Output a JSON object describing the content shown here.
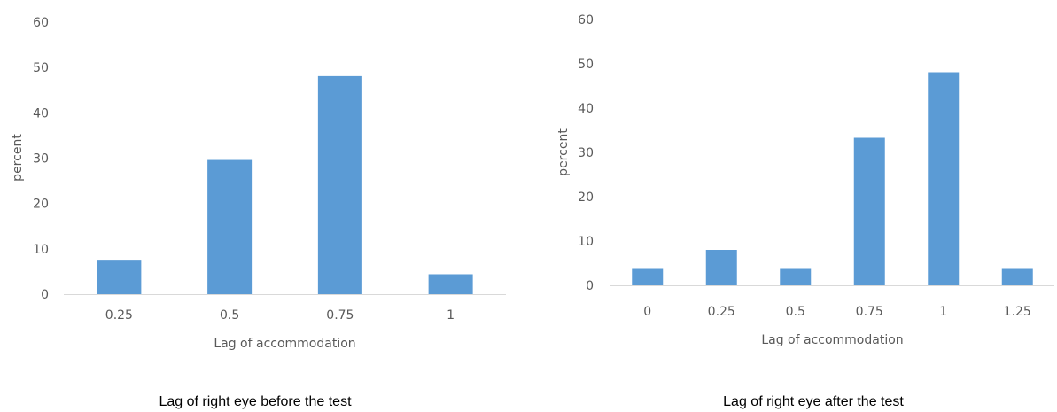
{
  "chart_data": [
    {
      "type": "bar",
      "categories": [
        "0.25",
        "0.5",
        "0.75",
        "1"
      ],
      "values": [
        7.4,
        29.6,
        48.1,
        4.4
      ],
      "xlabel": "Lag of accommodation",
      "ylabel": "percent",
      "yticks": [
        "0",
        "10",
        "20",
        "30",
        "40",
        "50",
        "60"
      ],
      "ylim": [
        0,
        60
      ],
      "grid": false,
      "bar_color": "#5b9bd5",
      "caption": "Lag of right eye before the test"
    },
    {
      "type": "bar",
      "categories": [
        "0",
        "0.25",
        "0.5",
        "0.75",
        "1",
        "1.25"
      ],
      "values": [
        3.7,
        8.0,
        3.7,
        33.3,
        48.1,
        3.7
      ],
      "xlabel": "Lag of accommodation",
      "ylabel": "percent",
      "yticks": [
        "0",
        "10",
        "20",
        "30",
        "40",
        "50",
        "60"
      ],
      "ylim": [
        0,
        60
      ],
      "grid": false,
      "bar_color": "#5b9bd5",
      "caption": "Lag of right eye after the test"
    }
  ]
}
